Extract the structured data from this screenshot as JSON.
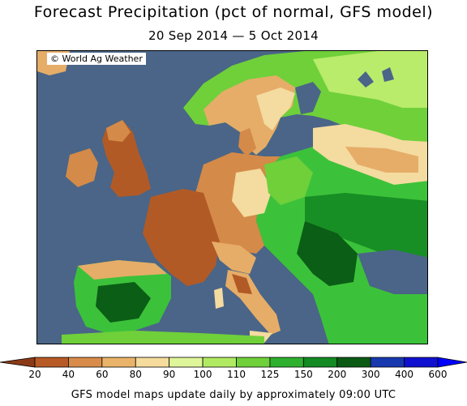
{
  "title": "Forecast Precipitation (pct of normal, GFS model)",
  "date_range": "20 Sep 2014 — 5 Oct 2014",
  "copyright": "© World Ag Weather",
  "legend": {
    "ticks": [
      "20",
      "40",
      "60",
      "80",
      "90",
      "100",
      "110",
      "125",
      "150",
      "200",
      "300",
      "400",
      "600"
    ],
    "colors": [
      "#8b3a16",
      "#b85a26",
      "#d98c4a",
      "#eab36a",
      "#f6dc9c",
      "#dff59a",
      "#b0ea62",
      "#6fd03a",
      "#2eb02e",
      "#138a22",
      "#0b5a14",
      "#1838b0",
      "#1010d0",
      "#0000ff"
    ]
  },
  "footer": "GFS model maps update daily by approximately 09:00 UTC",
  "colors": {
    "sea": "#4a6587",
    "dry_strong": "#b25a26",
    "dry": "#d48a48",
    "dry_light": "#e6ad68",
    "near_normal": "#f4dba0",
    "wet_light": "#b9ec6b",
    "wet": "#3cc23a",
    "wet_strong": "#178f24",
    "wet_very": "#0b5e16"
  }
}
